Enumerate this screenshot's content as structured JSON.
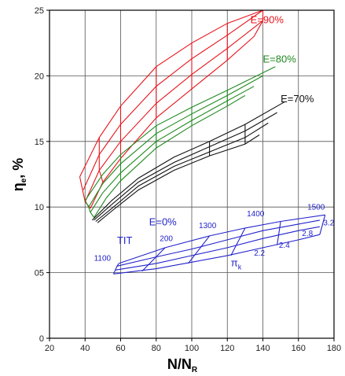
{
  "chart_data": {
    "type": "line",
    "xlabel": "N/N",
    "xlabel_sub": "R",
    "ylabel": "η",
    "ylabel_sub": "e",
    "ylabel_suffix": ", %",
    "xlim": [
      20,
      180
    ],
    "ylim": [
      0,
      25
    ],
    "xticks": [
      20,
      40,
      60,
      80,
      100,
      120,
      140,
      160,
      180
    ],
    "xtick_labels": [
      "20",
      "40",
      "60",
      "80",
      "100",
      "120",
      "140",
      "160",
      "180"
    ],
    "yticks": [
      0,
      5,
      10,
      15,
      20,
      25
    ],
    "ytick_labels": [
      "0",
      "05",
      "10",
      "15",
      "20",
      "25"
    ],
    "grid": true,
    "series": [
      {
        "name": "E=90%",
        "color": "#e8141c",
        "lines": [
          [
            [
              37,
              12.3
            ],
            [
              48,
              15.3
            ],
            [
              60,
              17.7
            ],
            [
              80,
              20.7
            ],
            [
              100,
              22.5
            ],
            [
              120,
              24.0
            ],
            [
              140,
              25.0
            ]
          ],
          [
            [
              39,
              11.3
            ],
            [
              48,
              14.0
            ],
            [
              60,
              16.3
            ],
            [
              80,
              19.2
            ],
            [
              100,
              21.3
            ],
            [
              120,
              23.1
            ],
            [
              140,
              25.0
            ]
          ],
          [
            [
              40,
              10.4
            ],
            [
              48,
              12.8
            ],
            [
              60,
              15.0
            ],
            [
              80,
              17.9
            ],
            [
              100,
              20.1
            ],
            [
              120,
              22.1
            ],
            [
              140,
              24.2
            ]
          ],
          [
            [
              43,
              9.9
            ],
            [
              50,
              11.9
            ],
            [
              60,
              13.7
            ],
            [
              80,
              16.8
            ],
            [
              100,
              19.0
            ],
            [
              120,
              21.2
            ],
            [
              135,
              23.0
            ]
          ],
          [
            [
              37,
              12.3
            ],
            [
              40,
              10.4
            ],
            [
              43,
              9.9
            ]
          ],
          [
            [
              48,
              15.3
            ],
            [
              48,
              14.0
            ],
            [
              48,
              12.8
            ],
            [
              50,
              11.9
            ]
          ],
          [
            [
              60,
              17.7
            ],
            [
              60,
              16.3
            ],
            [
              60,
              15.0
            ],
            [
              60,
              13.7
            ]
          ],
          [
            [
              80,
              20.7
            ],
            [
              80,
              19.2
            ],
            [
              80,
              17.9
            ],
            [
              80,
              16.8
            ]
          ],
          [
            [
              100,
              22.5
            ],
            [
              100,
              21.3
            ],
            [
              100,
              20.1
            ],
            [
              100,
              19.0
            ]
          ],
          [
            [
              120,
              24.0
            ],
            [
              120,
              23.1
            ],
            [
              120,
              22.1
            ],
            [
              120,
              21.2
            ]
          ],
          [
            [
              140,
              25.0
            ],
            [
              140,
              24.2
            ],
            [
              135,
              23.0
            ]
          ]
        ]
      },
      {
        "name": "E=80%",
        "color": "#1f8a1f",
        "lines": [
          [
            [
              40,
              10.5
            ],
            [
              50,
              12.5
            ],
            [
              60,
              14.0
            ],
            [
              80,
              16.2
            ],
            [
              100,
              17.6
            ],
            [
              120,
              18.9
            ],
            [
              147,
              20.7
            ]
          ],
          [
            [
              42,
              10.0
            ],
            [
              50,
              11.8
            ],
            [
              60,
              13.3
            ],
            [
              80,
              15.6
            ],
            [
              100,
              17.1
            ],
            [
              120,
              18.5
            ],
            [
              140,
              20.0
            ]
          ],
          [
            [
              43,
              9.6
            ],
            [
              50,
              11.1
            ],
            [
              60,
              12.6
            ],
            [
              80,
              15.0
            ],
            [
              100,
              16.6
            ],
            [
              120,
              18.1
            ],
            [
              135,
              19.2
            ]
          ],
          [
            [
              45,
              9.2
            ],
            [
              52,
              10.7
            ],
            [
              60,
              12.0
            ],
            [
              80,
              14.5
            ],
            [
              100,
              16.2
            ],
            [
              120,
              17.7
            ],
            [
              130,
              18.5
            ]
          ],
          [
            [
              40,
              10.5
            ],
            [
              42,
              10.0
            ],
            [
              43,
              9.6
            ],
            [
              45,
              9.2
            ]
          ],
          [
            [
              60,
              14.0
            ],
            [
              60,
              12.0
            ]
          ],
          [
            [
              80,
              16.2
            ],
            [
              80,
              14.5
            ]
          ],
          [
            [
              100,
              17.6
            ],
            [
              100,
              16.2
            ]
          ],
          [
            [
              120,
              18.9
            ],
            [
              120,
              17.7
            ]
          ]
        ]
      },
      {
        "name": "E=70%",
        "color": "#111111",
        "lines": [
          [
            [
              44,
              9.0
            ],
            [
              55,
              10.5
            ],
            [
              70,
              12.2
            ],
            [
              90,
              13.8
            ],
            [
              110,
              15.0
            ],
            [
              130,
              16.3
            ],
            [
              152,
              18.0
            ]
          ],
          [
            [
              45,
              9.0
            ],
            [
              55,
              10.2
            ],
            [
              70,
              11.9
            ],
            [
              90,
              13.4
            ],
            [
              110,
              14.6
            ],
            [
              130,
              15.8
            ],
            [
              148,
              17.2
            ]
          ],
          [
            [
              46,
              8.9
            ],
            [
              56,
              10.0
            ],
            [
              70,
              11.6
            ],
            [
              90,
              13.1
            ],
            [
              110,
              14.2
            ],
            [
              130,
              15.3
            ],
            [
              143,
              16.4
            ]
          ],
          [
            [
              47,
              8.8
            ],
            [
              56,
              9.8
            ],
            [
              70,
              11.3
            ],
            [
              90,
              12.8
            ],
            [
              110,
              13.9
            ],
            [
              130,
              14.8
            ],
            [
              138,
              15.5
            ]
          ],
          [
            [
              110,
              15.0
            ],
            [
              110,
              13.9
            ]
          ],
          [
            [
              130,
              16.3
            ],
            [
              130,
              14.8
            ]
          ]
        ]
      },
      {
        "name": "E=0%",
        "color": "#2323cc",
        "lines": [
          [
            [
              56,
              4.9
            ],
            [
              80,
              5.3
            ],
            [
              100,
              5.8
            ],
            [
              120,
              6.3
            ],
            [
              140,
              6.9
            ],
            [
              160,
              7.5
            ],
            [
              172,
              7.9
            ]
          ],
          [
            [
              57,
              5.2
            ],
            [
              80,
              5.7
            ],
            [
              100,
              6.3
            ],
            [
              120,
              6.9
            ],
            [
              140,
              7.6
            ],
            [
              160,
              8.2
            ],
            [
              172,
              8.5
            ]
          ],
          [
            [
              58,
              5.5
            ],
            [
              80,
              6.2
            ],
            [
              100,
              6.8
            ],
            [
              120,
              7.5
            ],
            [
              140,
              8.2
            ],
            [
              160,
              8.7
            ],
            [
              172,
              9.0
            ]
          ],
          [
            [
              59,
              5.7
            ],
            [
              85,
              6.9
            ],
            [
              110,
              7.8
            ],
            [
              130,
              8.4
            ],
            [
              150,
              8.9
            ],
            [
              175,
              9.4
            ]
          ],
          [
            [
              56,
              4.9
            ],
            [
              57,
              5.2
            ],
            [
              58,
              5.5
            ],
            [
              59,
              5.7
            ]
          ],
          [
            [
              72,
              5.1
            ],
            [
              85,
              6.9
            ]
          ],
          [
            [
              98,
              5.7
            ],
            [
              110,
              7.8
            ]
          ],
          [
            [
              122,
              6.3
            ],
            [
              130,
              8.4
            ]
          ],
          [
            [
              148,
              7.1
            ],
            [
              150,
              8.9
            ]
          ],
          [
            [
              172,
              7.9
            ],
            [
              175,
              9.4
            ]
          ]
        ]
      }
    ],
    "annotations": [
      {
        "text": "E=90%",
        "x": 133,
        "y": 24.0,
        "color": "#e8141c",
        "size": "large"
      },
      {
        "text": "E=80%",
        "x": 140,
        "y": 21.0,
        "color": "#1f8a1f",
        "size": "large"
      },
      {
        "text": "E=70%",
        "x": 150,
        "y": 18.0,
        "color": "#111111",
        "size": "large"
      },
      {
        "text": "E=0%",
        "x": 76,
        "y": 8.6,
        "color": "#2323cc",
        "size": "large"
      },
      {
        "text": "TIT",
        "x": 58,
        "y": 7.2,
        "color": "#2323cc",
        "size": "large"
      },
      {
        "text": "1100",
        "x": 45,
        "y": 5.9,
        "color": "#2323cc",
        "size": "small"
      },
      {
        "text": "200",
        "x": 82,
        "y": 7.4,
        "color": "#2323cc",
        "size": "small"
      },
      {
        "text": "1300",
        "x": 104,
        "y": 8.4,
        "color": "#2323cc",
        "size": "small"
      },
      {
        "text": "1400",
        "x": 131,
        "y": 9.3,
        "color": "#2323cc",
        "size": "small"
      },
      {
        "text": "1500",
        "x": 165,
        "y": 9.8,
        "color": "#2323cc",
        "size": "small"
      },
      {
        "text": "3.2",
        "x": 174,
        "y": 8.6,
        "color": "#2323cc",
        "size": "small"
      },
      {
        "text": "2.8",
        "x": 162,
        "y": 7.8,
        "color": "#2323cc",
        "size": "small"
      },
      {
        "text": "2.4",
        "x": 149,
        "y": 6.9,
        "color": "#2323cc",
        "size": "small"
      },
      {
        "text": "2.2",
        "x": 135,
        "y": 6.3,
        "color": "#2323cc",
        "size": "small"
      },
      {
        "text": "π",
        "x": 122,
        "y": 5.5,
        "color": "#2323cc",
        "size": "large",
        "sub": "k"
      }
    ]
  }
}
